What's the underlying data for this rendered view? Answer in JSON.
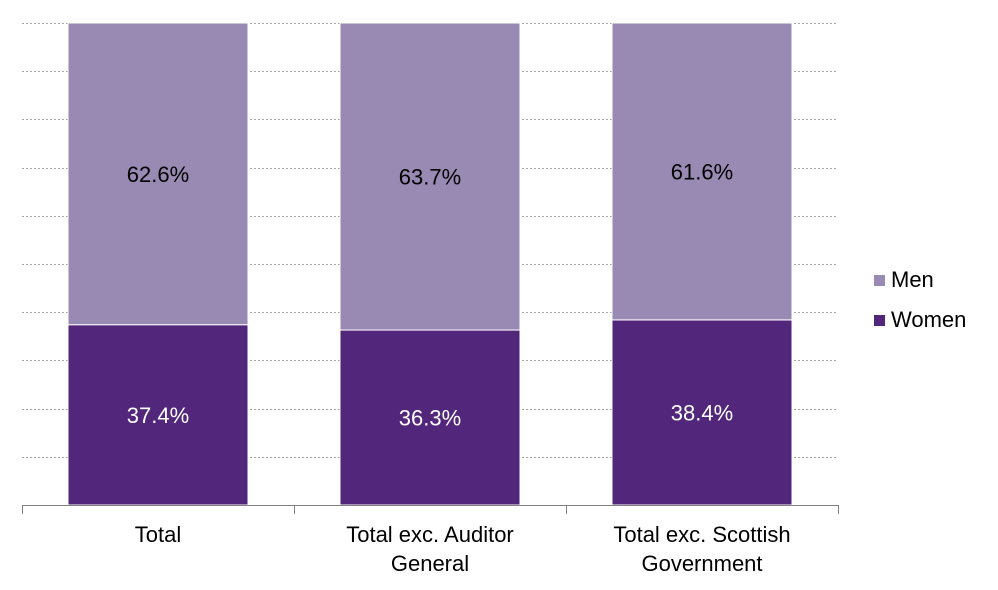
{
  "chart_data": {
    "type": "bar",
    "stacked": true,
    "categories": [
      "Total",
      "Total exc. Auditor General",
      "Total exc. Scottish Government"
    ],
    "category_lines": [
      [
        "Total"
      ],
      [
        "Total exc. Auditor",
        "General"
      ],
      [
        "Total exc. Scottish",
        "Government"
      ]
    ],
    "series": [
      {
        "name": "Women",
        "values": [
          37.4,
          36.3,
          38.4
        ],
        "labels": [
          "37.4%",
          "36.3%",
          "38.4%"
        ],
        "color": "#52267A"
      },
      {
        "name": "Men",
        "values": [
          62.6,
          63.7,
          61.6
        ],
        "labels": [
          "62.6%",
          "63.7%",
          "61.6%"
        ],
        "color": "#998AB3"
      }
    ],
    "ylim": [
      0,
      100
    ],
    "unit": "%",
    "grid": true,
    "legend": "right",
    "legend_order": [
      "Men",
      "Women"
    ],
    "label_colors": {
      "Women": "#FFFFFF",
      "Men": "#000000"
    }
  }
}
